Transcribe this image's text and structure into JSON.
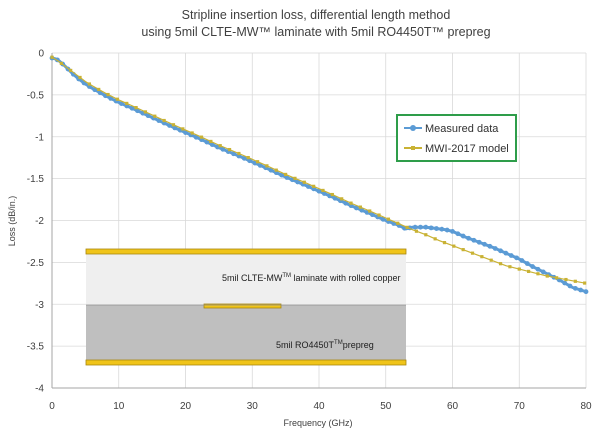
{
  "chart_data": {
    "type": "line",
    "title": "Stripline insertion loss, differential length method",
    "subtitle": "using 5mil CLTE-MW™ laminate with 5mil RO4450T™ prepreg",
    "xlabel": "Frequency (GHz)",
    "ylabel": "Loss (dB/in.)",
    "xlim": [
      0,
      80
    ],
    "ylim": [
      -4,
      0
    ],
    "x_ticks": [
      "0",
      "10",
      "20",
      "30",
      "40",
      "50",
      "60",
      "70",
      "80"
    ],
    "y_ticks": [
      "0",
      "-0.5",
      "-1",
      "-1.5",
      "-2",
      "-2.5",
      "-3",
      "-3.5",
      "-4"
    ],
    "grid": true,
    "legend_position": "right",
    "series": [
      {
        "name": "Measured data",
        "color": "#5b9bd5",
        "x": [
          0,
          0.5,
          1,
          2,
          3,
          4,
          5,
          6,
          8,
          10,
          12,
          15,
          18,
          20,
          22,
          25,
          28,
          30,
          32,
          35,
          38,
          40,
          42,
          45,
          48,
          50,
          52,
          53,
          54,
          55,
          56,
          57,
          58,
          59,
          60,
          62,
          64,
          66,
          68,
          70,
          72,
          74,
          76,
          78,
          80
        ],
        "y": [
          -0.06,
          -0.07,
          -0.09,
          -0.16,
          -0.24,
          -0.31,
          -0.37,
          -0.42,
          -0.51,
          -0.59,
          -0.66,
          -0.77,
          -0.88,
          -0.95,
          -1.02,
          -1.13,
          -1.23,
          -1.3,
          -1.37,
          -1.48,
          -1.58,
          -1.65,
          -1.72,
          -1.83,
          -1.93,
          -2.0,
          -2.06,
          -2.1,
          -2.08,
          -2.08,
          -2.08,
          -2.09,
          -2.1,
          -2.11,
          -2.13,
          -2.2,
          -2.26,
          -2.32,
          -2.39,
          -2.46,
          -2.55,
          -2.63,
          -2.71,
          -2.8,
          -2.85
        ]
      },
      {
        "name": "MWI-2017 model",
        "color": "#c9b234",
        "x": [
          0,
          1,
          2,
          3,
          4,
          5,
          6,
          8,
          10,
          12,
          15,
          18,
          20,
          22,
          25,
          28,
          30,
          32,
          35,
          38,
          40,
          42,
          45,
          48,
          50,
          52,
          54,
          56,
          58,
          60,
          62,
          64,
          66,
          68,
          70,
          72,
          74,
          76,
          78,
          80
        ],
        "y": [
          -0.05,
          -0.1,
          -0.16,
          -0.22,
          -0.28,
          -0.34,
          -0.39,
          -0.48,
          -0.56,
          -0.63,
          -0.74,
          -0.85,
          -0.92,
          -0.99,
          -1.1,
          -1.2,
          -1.27,
          -1.34,
          -1.45,
          -1.55,
          -1.62,
          -1.69,
          -1.8,
          -1.9,
          -1.97,
          -2.04,
          -2.11,
          -2.17,
          -2.24,
          -2.3,
          -2.36,
          -2.42,
          -2.48,
          -2.54,
          -2.58,
          -2.62,
          -2.66,
          -2.69,
          -2.72,
          -2.75
        ]
      }
    ]
  },
  "stackup": {
    "laminate_label_main": "5mil CLTE-MW",
    "laminate_label_sup": "TM",
    "laminate_label_rest": " laminate with rolled copper",
    "prepreg_label_main": "5mil RO4450T",
    "prepreg_label_sup": "TM",
    "prepreg_label_rest": "prepreg",
    "colors": {
      "laminate": "#efefef",
      "prepreg": "#bfbfbf",
      "copper": "#f0c419",
      "copper_edge": "#a8870f"
    }
  }
}
